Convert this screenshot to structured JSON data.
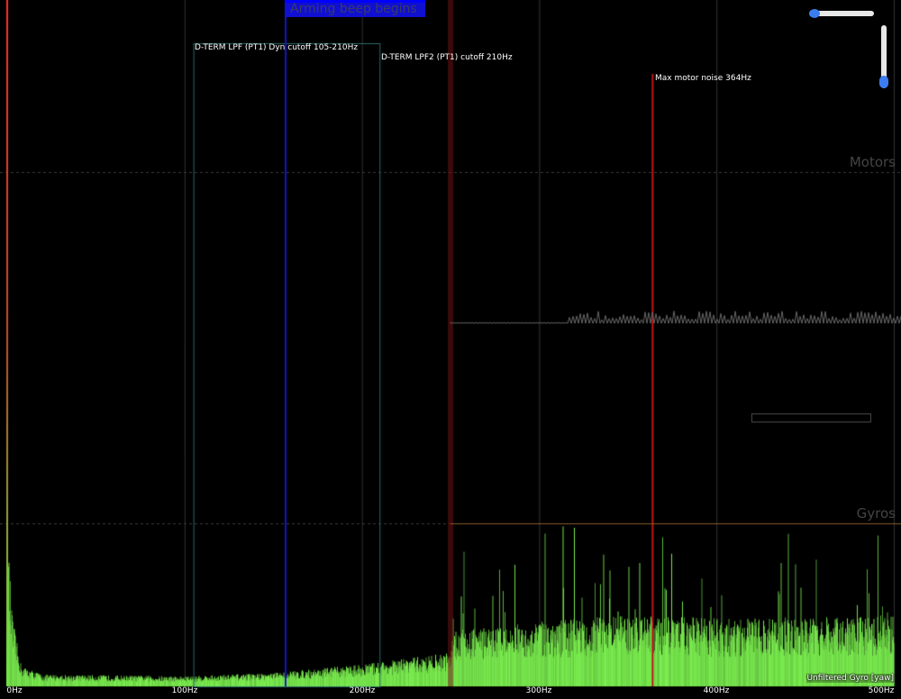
{
  "markers": {
    "arming": "Arming beep begins",
    "dterm_lpf": "D-TERM LPF (PT1) Dyn cutoff 105-210Hz",
    "dterm_lpf2": "D-TERM LPF2 (PT1) cutoff 210Hz",
    "max_motor_noise": "Max motor noise 364Hz"
  },
  "groups": {
    "motors": "Motors",
    "gyros": "Gyros"
  },
  "series_label": "Unfiltered Gyro [yaw]",
  "sliders": {
    "horizontal_zoom": 0,
    "vertical_zoom": 1
  },
  "chart_data": {
    "type": "area",
    "x_ticks": [
      "0Hz",
      "100Hz",
      "200Hz",
      "300Hz",
      "400Hz",
      "500Hz"
    ],
    "xlim": [
      0,
      500
    ],
    "series": [
      {
        "name": "Unfiltered Gyro [yaw]",
        "color": "#7cf050"
      }
    ],
    "envelope": {
      "freq_hz": [
        0,
        3,
        8,
        20,
        100,
        150,
        200,
        250,
        252,
        300,
        350,
        400,
        450,
        500
      ],
      "relative_amplitude": [
        0.95,
        0.4,
        0.12,
        0.07,
        0.06,
        0.08,
        0.13,
        0.2,
        0.33,
        0.38,
        0.42,
        0.4,
        0.4,
        0.42
      ]
    },
    "dterm_lpf_hz": [
      105,
      210
    ],
    "dterm_lpf2_hz": 210,
    "max_motor_noise_hz": 364,
    "arming_beep_hz": 157
  }
}
